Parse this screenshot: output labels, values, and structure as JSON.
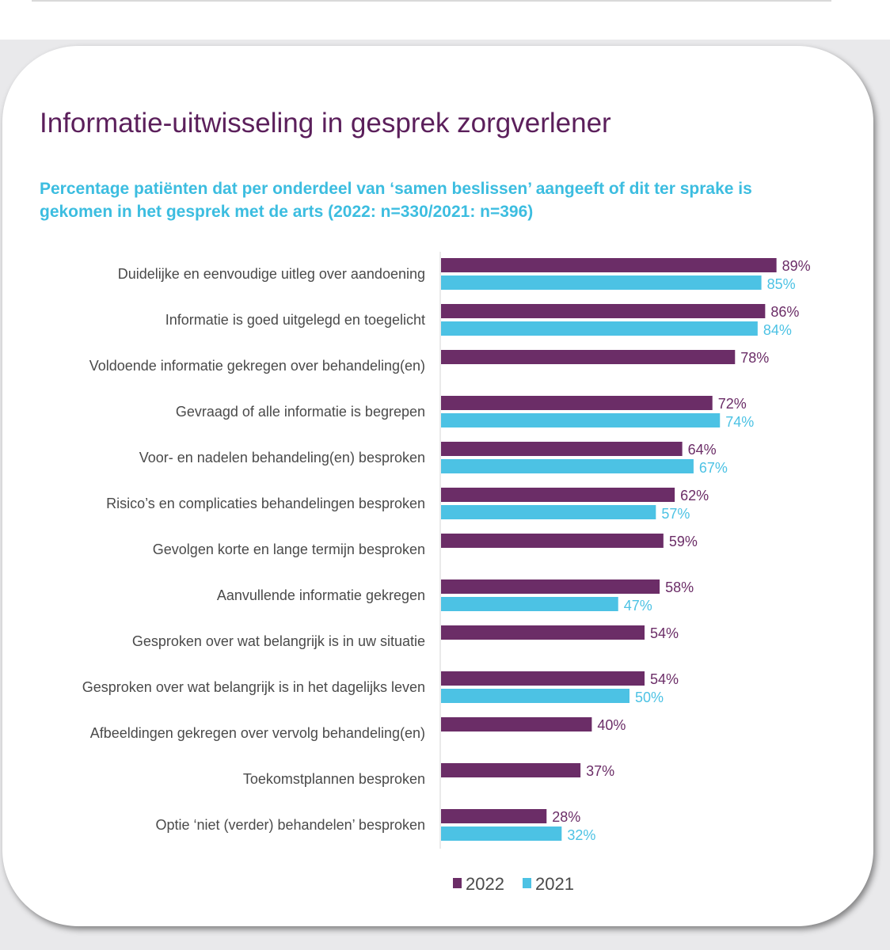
{
  "title": "Informatie-uitwisseling in gesprek zorgverlener",
  "subtitle": "Percentage patiënten dat per onderdeel van ‘samen beslissen’ aangeeft of dit ter sprake is gekomen in het gesprek met de arts (2022: n=330/2021: n=396)",
  "colors": {
    "series_2022": "#6b2d67",
    "series_2021": "#4cc2e4",
    "title": "#5b1f5b",
    "subtitle": "#3cbde0"
  },
  "chart_data": {
    "type": "bar",
    "orientation": "horizontal",
    "title": "Informatie-uitwisseling in gesprek zorgverlener",
    "xlim": [
      0,
      100
    ],
    "grid": false,
    "legend_position": "bottom",
    "categories": [
      "Duidelijke en eenvoudige uitleg over aandoening",
      "Informatie is goed uitgelegd en toegelicht",
      "Voldoende informatie gekregen over behandeling(en)",
      "Gevraagd of alle informatie is begrepen",
      "Voor- en nadelen behandeling(en) besproken",
      "Risico’s en complicaties behandelingen besproken",
      "Gevolgen korte en lange termijn besproken",
      "Aanvullende informatie gekregen",
      "Gesproken over wat belangrijk is in uw situatie",
      "Gesproken over wat belangrijk is in het dagelijks leven",
      "Afbeeldingen gekregen over vervolg behandeling(en)",
      "Toekomstplannen besproken",
      "Optie ‘niet (verder) behandelen’ besproken"
    ],
    "series": [
      {
        "name": "2022",
        "values": [
          89,
          86,
          78,
          72,
          64,
          62,
          59,
          58,
          54,
          54,
          40,
          37,
          28
        ],
        "labels": [
          "89%",
          "86%",
          "78%",
          "72%",
          "64%",
          "62%",
          "59%",
          "58%",
          "54%",
          "54%",
          "40%",
          "37%",
          "28%"
        ]
      },
      {
        "name": "2021",
        "values": [
          85,
          84,
          null,
          74,
          67,
          57,
          null,
          47,
          null,
          50,
          null,
          null,
          32
        ],
        "labels": [
          "85%",
          "84%",
          null,
          "74%",
          "67%",
          "57%",
          null,
          "47%",
          null,
          "50%",
          null,
          null,
          "32%"
        ]
      }
    ]
  }
}
